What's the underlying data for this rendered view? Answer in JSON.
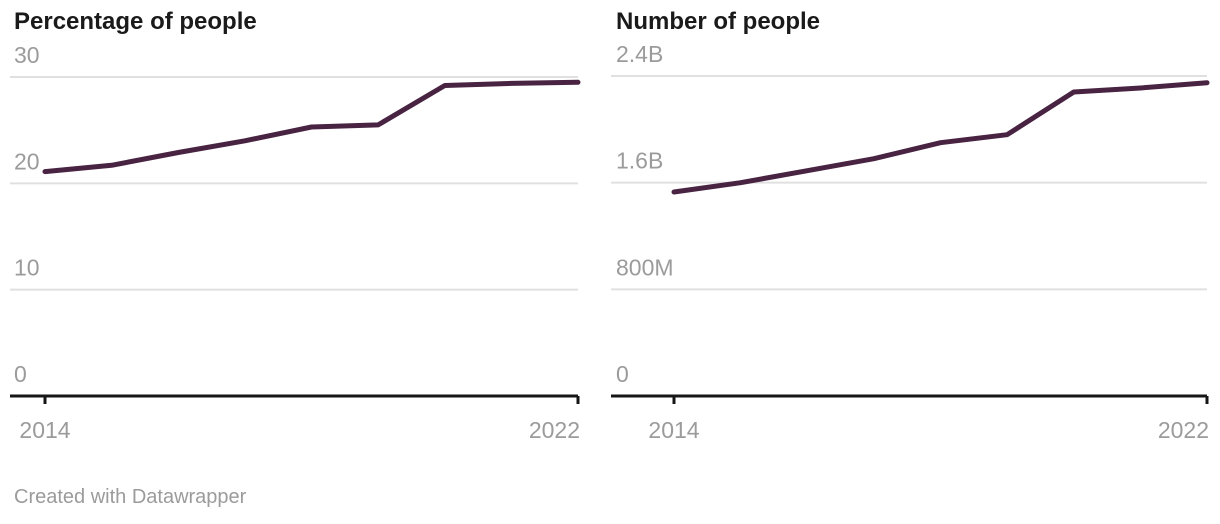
{
  "page": {
    "footer": "Created with Datawrapper"
  },
  "colors": {
    "line": "#482342",
    "axis": "#161616",
    "gridline": "#e0e0e0",
    "tick_label": "#9b9b9b",
    "title": "#1a1a1a"
  },
  "chart_data": [
    {
      "type": "line",
      "title": "Percentage of people",
      "x": [
        2014,
        2015,
        2016,
        2017,
        2018,
        2019,
        2020,
        2021,
        2022
      ],
      "values": [
        21.1,
        21.7,
        22.9,
        24.0,
        25.3,
        25.5,
        29.2,
        29.4,
        29.5
      ],
      "ylim": [
        0,
        30
      ],
      "xlim": [
        2014,
        2022
      ],
      "grid": true,
      "legend": "none",
      "y_ticks": [
        {
          "value": 30,
          "label": "30"
        },
        {
          "value": 20,
          "label": "20"
        },
        {
          "value": 10,
          "label": "10"
        },
        {
          "value": 0,
          "label": "0"
        }
      ],
      "x_tick_labels": {
        "first": "2014",
        "last": "2022"
      }
    },
    {
      "type": "line",
      "title": "Number of people",
      "x": [
        2014,
        2015,
        2016,
        2017,
        2018,
        2019,
        2020,
        2021,
        2022
      ],
      "values": [
        1.53,
        1.6,
        1.69,
        1.78,
        1.9,
        1.96,
        2.28,
        2.31,
        2.35
      ],
      "values_unit": "billions",
      "ylim": [
        0,
        2.4
      ],
      "xlim": [
        2014,
        2022
      ],
      "grid": true,
      "legend": "none",
      "y_ticks": [
        {
          "value": 2.4,
          "label": "2.4B"
        },
        {
          "value": 1.6,
          "label": "1.6B"
        },
        {
          "value": 0.8,
          "label": "800M"
        },
        {
          "value": 0,
          "label": "0"
        }
      ],
      "x_tick_labels": {
        "first": "2014",
        "last": "2022"
      }
    }
  ]
}
